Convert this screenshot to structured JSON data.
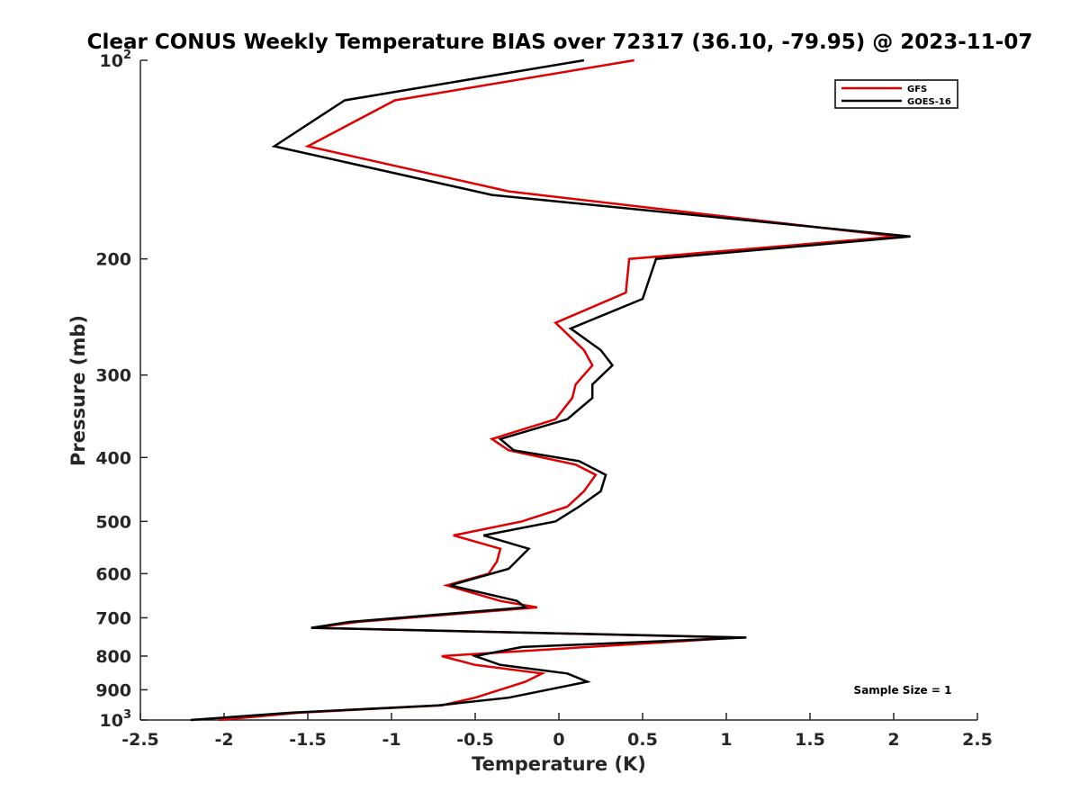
{
  "chart_data": {
    "type": "line",
    "title": "Clear CONUS Weekly Temperature BIAS over 72317 (36.10, -79.95) @ 2023-11-07",
    "xlabel": "Temperature (K)",
    "ylabel": "Pressure (mb)",
    "xlim": [
      -2.5,
      2.5
    ],
    "ylim": [
      100,
      1000
    ],
    "y_scale": "log",
    "y_reversed": true,
    "grid": false,
    "legend_position": "top-right",
    "x_ticks": [
      {
        "value": -2.5,
        "label": "-2.5"
      },
      {
        "value": -2,
        "label": "-2"
      },
      {
        "value": -1.5,
        "label": "-1.5"
      },
      {
        "value": -1,
        "label": "-1"
      },
      {
        "value": -0.5,
        "label": "-0.5"
      },
      {
        "value": 0,
        "label": "0"
      },
      {
        "value": 0.5,
        "label": "0.5"
      },
      {
        "value": 1,
        "label": "1"
      },
      {
        "value": 1.5,
        "label": "1.5"
      },
      {
        "value": 2,
        "label": "2"
      },
      {
        "value": 2.5,
        "label": "2.5"
      }
    ],
    "y_ticks": [
      {
        "value": 100,
        "label": "10",
        "exp": "2"
      },
      {
        "value": 200,
        "label": "200"
      },
      {
        "value": 300,
        "label": "300"
      },
      {
        "value": 400,
        "label": "400"
      },
      {
        "value": 500,
        "label": "500"
      },
      {
        "value": 600,
        "label": "600"
      },
      {
        "value": 700,
        "label": "700"
      },
      {
        "value": 800,
        "label": "800"
      },
      {
        "value": 900,
        "label": "900"
      },
      {
        "value": 1000,
        "label": "10",
        "exp": "3"
      }
    ],
    "annotation": "Sample Size = 1",
    "series": [
      {
        "name": "GFS",
        "color": "#e00000",
        "points": [
          {
            "x": 0.45,
            "y": 100
          },
          {
            "x": -0.98,
            "y": 115
          },
          {
            "x": -1.5,
            "y": 135
          },
          {
            "x": -0.3,
            "y": 158
          },
          {
            "x": 2.02,
            "y": 185
          },
          {
            "x": 0.42,
            "y": 200
          },
          {
            "x": 0.4,
            "y": 225
          },
          {
            "x": -0.02,
            "y": 250
          },
          {
            "x": 0.15,
            "y": 275
          },
          {
            "x": 0.2,
            "y": 290
          },
          {
            "x": 0.1,
            "y": 310
          },
          {
            "x": 0.08,
            "y": 325
          },
          {
            "x": -0.02,
            "y": 350
          },
          {
            "x": -0.4,
            "y": 375
          },
          {
            "x": -0.3,
            "y": 390
          },
          {
            "x": 0.1,
            "y": 410
          },
          {
            "x": 0.22,
            "y": 425
          },
          {
            "x": 0.15,
            "y": 450
          },
          {
            "x": 0.05,
            "y": 475
          },
          {
            "x": -0.22,
            "y": 500
          },
          {
            "x": -0.63,
            "y": 525
          },
          {
            "x": -0.35,
            "y": 550
          },
          {
            "x": -0.37,
            "y": 575
          },
          {
            "x": -0.42,
            "y": 600
          },
          {
            "x": -0.67,
            "y": 625
          },
          {
            "x": -0.35,
            "y": 660
          },
          {
            "x": -0.13,
            "y": 675
          },
          {
            "x": -1.2,
            "y": 710
          },
          {
            "x": -1.47,
            "y": 725
          },
          {
            "x": 1.08,
            "y": 750
          },
          {
            "x": -0.7,
            "y": 800
          },
          {
            "x": -0.5,
            "y": 825
          },
          {
            "x": -0.1,
            "y": 850
          },
          {
            "x": -0.2,
            "y": 875
          },
          {
            "x": -0.5,
            "y": 925
          },
          {
            "x": -0.7,
            "y": 950
          },
          {
            "x": -1.55,
            "y": 975
          },
          {
            "x": -2.03,
            "y": 1000
          }
        ]
      },
      {
        "name": "GOES-16",
        "color": "#000000",
        "points": [
          {
            "x": 0.15,
            "y": 100
          },
          {
            "x": -1.28,
            "y": 115
          },
          {
            "x": -1.7,
            "y": 135
          },
          {
            "x": -0.4,
            "y": 160
          },
          {
            "x": 2.1,
            "y": 185
          },
          {
            "x": 0.58,
            "y": 200
          },
          {
            "x": 0.5,
            "y": 230
          },
          {
            "x": 0.07,
            "y": 255
          },
          {
            "x": 0.25,
            "y": 275
          },
          {
            "x": 0.32,
            "y": 290
          },
          {
            "x": 0.2,
            "y": 310
          },
          {
            "x": 0.2,
            "y": 325
          },
          {
            "x": 0.05,
            "y": 350
          },
          {
            "x": -0.35,
            "y": 375
          },
          {
            "x": -0.27,
            "y": 390
          },
          {
            "x": 0.12,
            "y": 405
          },
          {
            "x": 0.28,
            "y": 425
          },
          {
            "x": 0.25,
            "y": 450
          },
          {
            "x": 0.12,
            "y": 475
          },
          {
            "x": -0.02,
            "y": 500
          },
          {
            "x": -0.45,
            "y": 525
          },
          {
            "x": -0.18,
            "y": 550
          },
          {
            "x": -0.3,
            "y": 590
          },
          {
            "x": -0.65,
            "y": 625
          },
          {
            "x": -0.25,
            "y": 660
          },
          {
            "x": -0.2,
            "y": 675
          },
          {
            "x": -1.25,
            "y": 710
          },
          {
            "x": -1.48,
            "y": 725
          },
          {
            "x": 1.12,
            "y": 750
          },
          {
            "x": -0.22,
            "y": 775
          },
          {
            "x": -0.5,
            "y": 800
          },
          {
            "x": -0.35,
            "y": 825
          },
          {
            "x": 0.05,
            "y": 850
          },
          {
            "x": 0.17,
            "y": 875
          },
          {
            "x": -0.3,
            "y": 925
          },
          {
            "x": -0.72,
            "y": 950
          },
          {
            "x": -1.6,
            "y": 975
          },
          {
            "x": -2.2,
            "y": 1000
          }
        ]
      }
    ]
  }
}
